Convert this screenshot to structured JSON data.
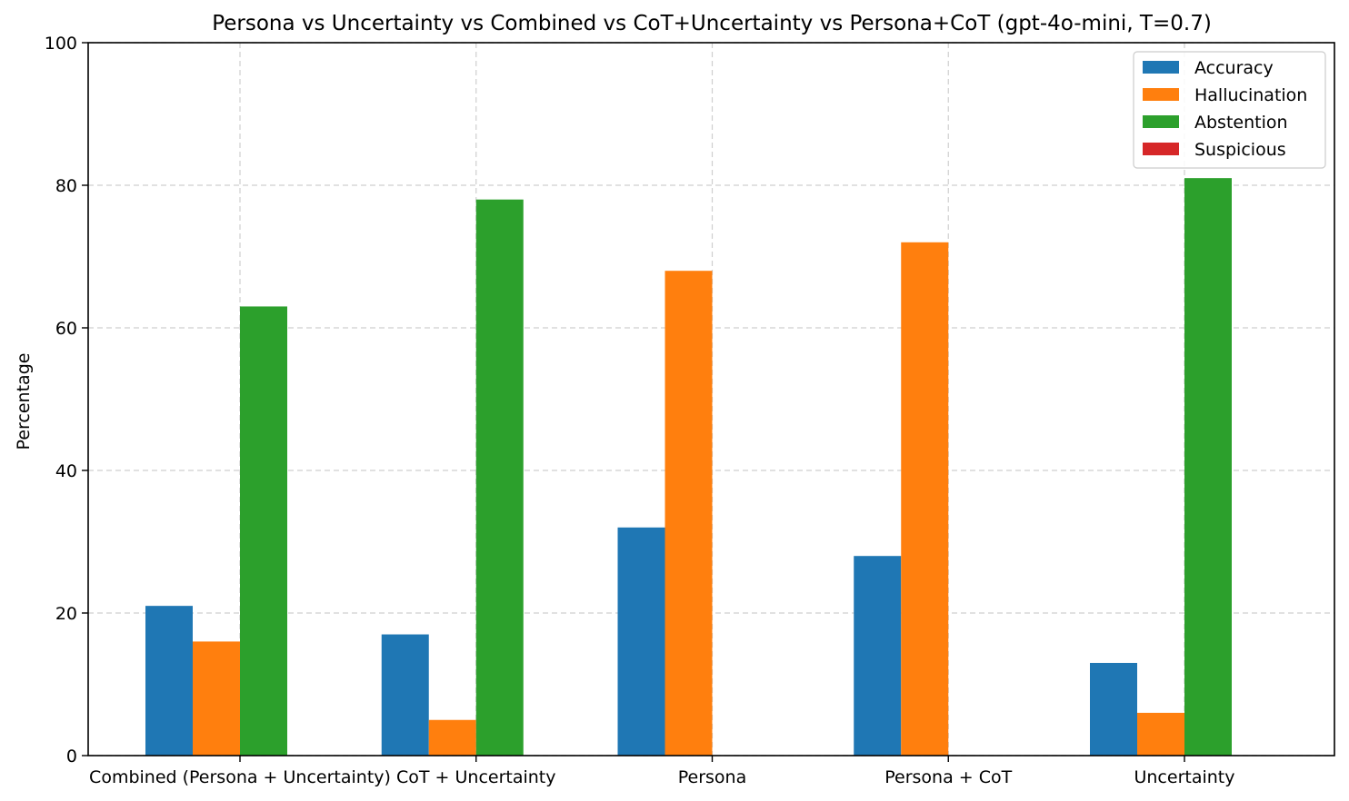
{
  "chart_data": {
    "type": "bar",
    "title": "Persona vs Uncertainty vs Combined vs CoT+Uncertainty vs Persona+CoT (gpt-4o-mini, T=0.7)",
    "xlabel": "",
    "ylabel": "Percentage",
    "ylim": [
      0,
      100
    ],
    "yticks": [
      0,
      20,
      40,
      60,
      80,
      100
    ],
    "grid": true,
    "legend_position": "top-right",
    "categories": [
      "Combined (Persona + Uncertainty)",
      "CoT + Uncertainty",
      "Persona",
      "Persona + CoT",
      "Uncertainty"
    ],
    "series": [
      {
        "name": "Accuracy",
        "color": "#1f77b4",
        "values": [
          21,
          17,
          32,
          28,
          13
        ]
      },
      {
        "name": "Hallucination",
        "color": "#ff7f0e",
        "values": [
          16,
          5,
          68,
          72,
          6
        ]
      },
      {
        "name": "Abstention",
        "color": "#2ca02c",
        "values": [
          63,
          78,
          0,
          0,
          81
        ]
      },
      {
        "name": "Suspicious",
        "color": "#d62728",
        "values": [
          0,
          0,
          0,
          0,
          0
        ]
      }
    ]
  }
}
